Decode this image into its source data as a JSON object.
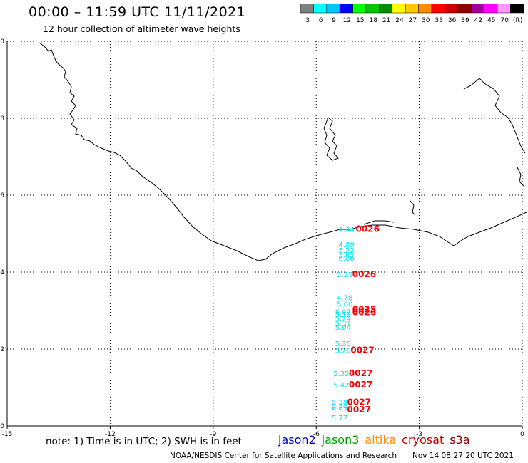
{
  "header": {
    "title": "00:00 – 11:59 UTC 11/11/2021",
    "subtitle": "12 hour collection of altimeter wave heights"
  },
  "colorbar": {
    "labels": [
      "3",
      "6",
      "9",
      "12",
      "15",
      "18",
      "21",
      "24",
      "27",
      "30",
      "33",
      "36",
      "39",
      "42",
      "45",
      "70",
      "(ft)"
    ],
    "colors": [
      "#808080",
      "#00ffff",
      "#00c8ff",
      "#0000ff",
      "#00ff00",
      "#00c800",
      "#008c00",
      "#ffff00",
      "#ffc800",
      "#ff8c00",
      "#ff0000",
      "#c80000",
      "#8c0000",
      "#a000a0",
      "#ff00ff",
      "#ff96ff",
      "#000000"
    ]
  },
  "footer": {
    "note": "note:  1) Time is in UTC;  2) SWH is in feet",
    "credit": "NOAA/NESDIS Center for Satellite Applications and Research",
    "timestamp": "Nov 14 08:27:20 UTC 2021"
  },
  "legend": [
    {
      "label": "jason2",
      "color": "#0000cc"
    },
    {
      "label": "jason3",
      "color": "#00a000"
    },
    {
      "label": "altika",
      "color": "#ff8c00"
    },
    {
      "label": "cryosat",
      "color": "#cc0000"
    },
    {
      "label": "s3a",
      "color": "#800000"
    }
  ],
  "chart_data": {
    "type": "scatter",
    "title": "00:00 – 11:59 UTC 11/11/2021",
    "xlim": [
      -15,
      0
    ],
    "ylim": [
      0,
      10
    ],
    "x_ticks": [
      -15,
      -12,
      -9,
      -6,
      -3,
      0
    ],
    "y_ticks": [
      0,
      2,
      4,
      6,
      8,
      10
    ],
    "grid": true,
    "series": [
      {
        "name": "jason3",
        "color": "#00e5ee",
        "points": [
          {
            "x": -5.35,
            "y": 5.05,
            "label": "4.44"
          },
          {
            "x": -5.35,
            "y": 4.65,
            "label": "4.89"
          },
          {
            "x": -5.35,
            "y": 4.5,
            "label": "5.22"
          },
          {
            "x": -5.35,
            "y": 4.38,
            "label": "5.65"
          },
          {
            "x": -5.35,
            "y": 4.3,
            "label": "6.06"
          },
          {
            "x": -5.4,
            "y": 3.87,
            "label": "5.25"
          },
          {
            "x": -5.4,
            "y": 3.27,
            "label": "4.78"
          },
          {
            "x": -5.4,
            "y": 3.1,
            "label": "5.00"
          },
          {
            "x": -5.45,
            "y": 2.9,
            "label": "5.07"
          },
          {
            "x": -5.45,
            "y": 2.83,
            "label": "5.19"
          },
          {
            "x": -5.45,
            "y": 2.73,
            "label": "5.24"
          },
          {
            "x": -5.45,
            "y": 2.6,
            "label": "5.31"
          },
          {
            "x": -5.45,
            "y": 2.5,
            "label": "5.04"
          },
          {
            "x": -5.45,
            "y": 2.07,
            "label": "5.30"
          },
          {
            "x": -5.45,
            "y": 1.9,
            "label": "5.26"
          },
          {
            "x": -5.5,
            "y": 1.3,
            "label": "5.35"
          },
          {
            "x": -5.5,
            "y": 1.0,
            "label": "5.42"
          },
          {
            "x": -5.55,
            "y": 0.55,
            "label": "5.38"
          },
          {
            "x": -5.55,
            "y": 0.45,
            "label": "5.54"
          },
          {
            "x": -5.55,
            "y": 0.35,
            "label": "5.57"
          },
          {
            "x": -5.55,
            "y": 0.15,
            "label": "5.77"
          }
        ]
      },
      {
        "name": "cryosat",
        "color": "#ff0000",
        "points": [
          {
            "x": -4.85,
            "y": 5.05,
            "label": "0026"
          },
          {
            "x": -4.95,
            "y": 3.87,
            "label": "0026"
          },
          {
            "x": -4.95,
            "y": 2.95,
            "label": "0025"
          },
          {
            "x": -4.95,
            "y": 2.88,
            "label": "0026"
          },
          {
            "x": -5.0,
            "y": 1.9,
            "label": "0027"
          },
          {
            "x": -5.05,
            "y": 1.3,
            "label": "0027"
          },
          {
            "x": -5.05,
            "y": 1.0,
            "label": "0027"
          },
          {
            "x": -5.1,
            "y": 0.55,
            "label": "0027"
          },
          {
            "x": -5.1,
            "y": 0.35,
            "label": "0027"
          }
        ]
      }
    ]
  }
}
